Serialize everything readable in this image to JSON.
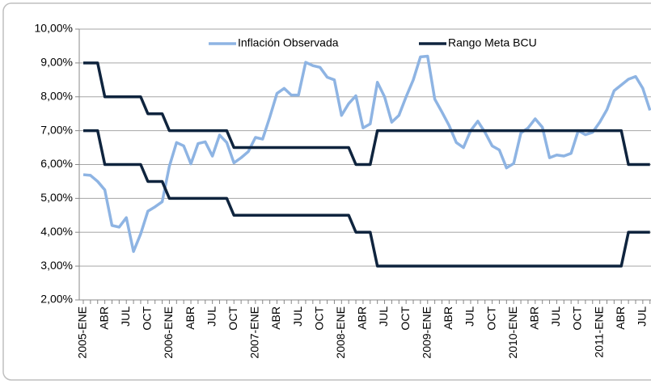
{
  "chart_data": {
    "type": "line",
    "categories": [
      "2005-ENE",
      null,
      null,
      "ABR",
      null,
      null,
      "JUL",
      null,
      null,
      "OCT",
      null,
      null,
      "2006-ENE",
      null,
      null,
      "ABR",
      null,
      null,
      "JUL",
      null,
      null,
      "OCT",
      null,
      null,
      "2007-ENE",
      null,
      null,
      "ABR",
      null,
      null,
      "JUL",
      null,
      null,
      "OCT",
      null,
      null,
      "2008-ENE",
      null,
      null,
      "ABR",
      null,
      null,
      "JUL",
      null,
      null,
      "OCT",
      null,
      null,
      "2009-ENE",
      null,
      null,
      "ABR",
      null,
      null,
      "JUL",
      null,
      null,
      "OCT",
      null,
      null,
      "2010-ENE",
      null,
      null,
      "ABR",
      null,
      null,
      "JUL",
      null,
      null,
      "OCT",
      null,
      null,
      "2011-ENE",
      null,
      null,
      "ABR",
      null,
      null,
      "JUL",
      null
    ],
    "series": [
      {
        "name": "Inflación Observada",
        "color": "#8eb4e3",
        "values": [
          5.7,
          5.68,
          5.5,
          5.25,
          4.2,
          4.15,
          4.43,
          3.43,
          3.95,
          4.62,
          4.75,
          4.9,
          5.95,
          6.65,
          6.55,
          6.02,
          6.62,
          6.67,
          6.25,
          6.87,
          6.65,
          6.05,
          6.2,
          6.38,
          6.8,
          6.75,
          7.4,
          8.1,
          8.25,
          8.05,
          8.05,
          9.02,
          8.92,
          8.87,
          8.58,
          8.5,
          7.45,
          7.8,
          8.03,
          7.08,
          7.2,
          8.43,
          8.0,
          7.25,
          7.45,
          8.0,
          8.5,
          9.18,
          9.2,
          7.93,
          7.55,
          7.15,
          6.65,
          6.5,
          7.0,
          7.28,
          6.95,
          6.55,
          6.43,
          5.9,
          6.03,
          6.93,
          7.08,
          7.35,
          7.1,
          6.2,
          6.28,
          6.25,
          6.33,
          7.0,
          6.88,
          6.95,
          7.25,
          7.62,
          8.18,
          8.35,
          8.52,
          8.6,
          8.25,
          7.6
        ]
      },
      {
        "name": "Rango Meta BCU",
        "color": "#0f243e",
        "upper": [
          9,
          9,
          9,
          8,
          8,
          8,
          8,
          8,
          8,
          7.5,
          7.5,
          7.5,
          7,
          7,
          7,
          7,
          7,
          7,
          7,
          7,
          7,
          6.5,
          6.5,
          6.5,
          6.5,
          6.5,
          6.5,
          6.5,
          6.5,
          6.5,
          6.5,
          6.5,
          6.5,
          6.5,
          6.5,
          6.5,
          6.5,
          6.5,
          6,
          6,
          6,
          7,
          7,
          7,
          7,
          7,
          7,
          7,
          7,
          7,
          7,
          7,
          7,
          7,
          7,
          7,
          7,
          7,
          7,
          7,
          7,
          7,
          7,
          7,
          7,
          7,
          7,
          7,
          7,
          7,
          7,
          7,
          7,
          7,
          7,
          7,
          6,
          6,
          6,
          6
        ],
        "lower": [
          7,
          7,
          7,
          6,
          6,
          6,
          6,
          6,
          6,
          5.5,
          5.5,
          5.5,
          5,
          5,
          5,
          5,
          5,
          5,
          5,
          5,
          5,
          4.5,
          4.5,
          4.5,
          4.5,
          4.5,
          4.5,
          4.5,
          4.5,
          4.5,
          4.5,
          4.5,
          4.5,
          4.5,
          4.5,
          4.5,
          4.5,
          4.5,
          4,
          4,
          4,
          3,
          3,
          3,
          3,
          3,
          3,
          3,
          3,
          3,
          3,
          3,
          3,
          3,
          3,
          3,
          3,
          3,
          3,
          3,
          3,
          3,
          3,
          3,
          3,
          3,
          3,
          3,
          3,
          3,
          3,
          3,
          3,
          3,
          3,
          3,
          4,
          4,
          4,
          4
        ]
      }
    ],
    "ylim": [
      2,
      10
    ],
    "yticks": [
      {
        "value": 2,
        "label": "2,00%"
      },
      {
        "value": 3,
        "label": "3,00%"
      },
      {
        "value": 4,
        "label": "4,00%"
      },
      {
        "value": 5,
        "label": "5,00%"
      },
      {
        "value": 6,
        "label": "6,00%"
      },
      {
        "value": 7,
        "label": "7,00%"
      },
      {
        "value": 8,
        "label": "8,00%"
      },
      {
        "value": 9,
        "label": "9,00%"
      },
      {
        "value": 10,
        "label": "10,00%"
      }
    ],
    "grid": true,
    "legend": "top"
  }
}
